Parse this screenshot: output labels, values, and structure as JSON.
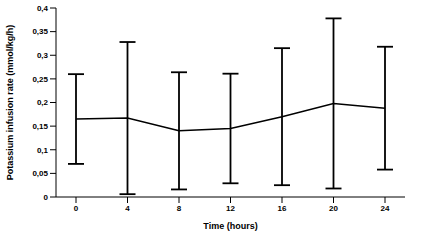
{
  "chart_data": {
    "type": "line",
    "x_label": "Time (hours)",
    "y_label": "Potassium infusion rate (mmol/kg/h)",
    "categories": [
      "0",
      "4",
      "8",
      "12",
      "16",
      "20",
      "24"
    ],
    "values": [
      0.165,
      0.167,
      0.14,
      0.145,
      0.17,
      0.198,
      0.188
    ],
    "errors": [
      0.095,
      0.161,
      0.124,
      0.116,
      0.145,
      0.18,
      0.13
    ],
    "color": "#000000",
    "marker": "none",
    "ylim": [
      0,
      0.4
    ],
    "yticks": [
      0,
      {
        "value": 0.05,
        "label": "0,05"
      },
      {
        "value": 0.1,
        "label": "0,1"
      },
      {
        "value": 0.15,
        "label": "0,15"
      },
      {
        "value": 0.2,
        "label": "0,2"
      },
      {
        "value": 0.25,
        "label": "0,25"
      },
      {
        "value": 0.3,
        "label": "0,3"
      },
      {
        "value": 0.35,
        "label": "0,35"
      },
      {
        "value": 0.4,
        "label": "0,4"
      }
    ],
    "grid": false
  }
}
